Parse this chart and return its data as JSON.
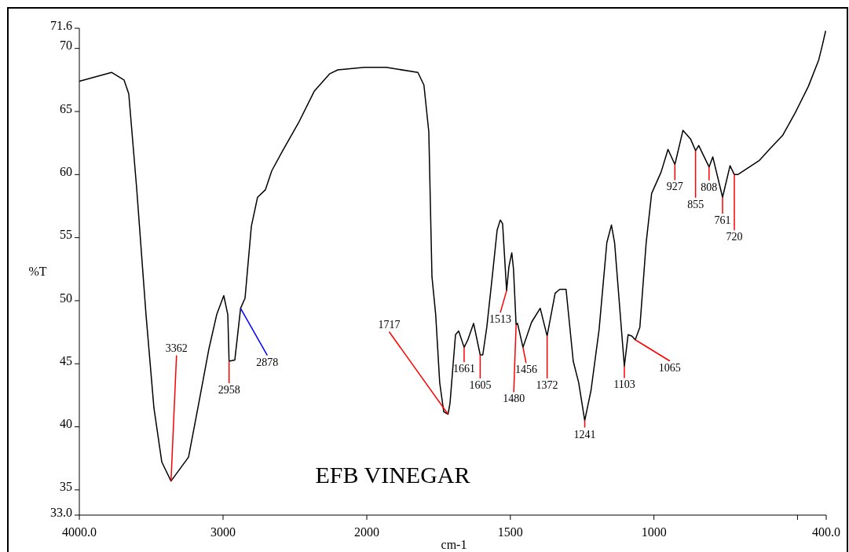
{
  "chart_data": [
    {
      "type": "line",
      "ylabel": "%T",
      "xlim": [
        4000,
        2000
      ],
      "ylim": [
        33,
        71.6
      ],
      "xticks": [
        {
          "value": 4000,
          "label": "4000.0"
        },
        3000
      ],
      "yticks": [
        {
          "value": 33,
          "label": "33.0"
        },
        35,
        40,
        45,
        50,
        55,
        60,
        65,
        70,
        71.6
      ],
      "series": [
        {
          "color": "#000000",
          "x": [
            4000,
            3776,
            3689,
            3656,
            3601,
            3536,
            3481,
            3426,
            3362,
            3240,
            3175,
            3098,
            3044,
            2995,
            2967,
            2958,
            2918,
            2878,
            2847,
            2803,
            2760,
            2705,
            2661,
            2585,
            2475,
            2366,
            2257,
            2202,
            2016,
            2000
          ],
          "values": [
            67.4,
            68.1,
            67.5,
            66.4,
            58.9,
            48.9,
            41.5,
            37.2,
            35.7,
            37.6,
            41.5,
            46.2,
            48.9,
            50.4,
            48.9,
            45.2,
            45.3,
            49.4,
            50.2,
            55.9,
            58.2,
            58.8,
            60.3,
            61.9,
            64.1,
            66.6,
            68.0,
            68.3,
            68.5,
            68.5
          ]
        }
      ],
      "annotations": [
        {
          "text": "3362",
          "x": 3362,
          "y": 35.7
        },
        {
          "text": "2958",
          "x": 2958,
          "y": 45.2
        },
        {
          "text": "2878",
          "x": 2878,
          "y": 49.4
        }
      ]
    },
    {
      "type": "line",
      "title": "EFB VINEGAR",
      "xlabel": "cm-1",
      "xlim": [
        2000,
        400
      ],
      "ylim": [
        33,
        71.6
      ],
      "tick_labels": "x",
      "xticks": [
        2000,
        1500,
        1000,
        {
          "value": 500,
          "label": null
        },
        {
          "value": 400,
          "label": "400.0"
        }
      ],
      "series": [
        {
          "color": "#000000",
          "x": [
            2000,
            1932,
            1822,
            1801,
            1784,
            1773,
            1760,
            1746,
            1732,
            1717,
            1710,
            1691,
            1680,
            1661,
            1648,
            1628,
            1605,
            1596,
            1582,
            1563,
            1546,
            1535,
            1527,
            1513,
            1505,
            1495,
            1489,
            1480,
            1475,
            1456,
            1426,
            1396,
            1372,
            1344,
            1328,
            1306,
            1281,
            1262,
            1241,
            1219,
            1191,
            1164,
            1148,
            1137,
            1103,
            1090,
            1077,
            1065,
            1049,
            1027,
            1008,
            975,
            951,
            927,
            899,
            872,
            855,
            844,
            808,
            795,
            761,
            735,
            720,
            708,
            634,
            598,
            552,
            508,
            462,
            426,
            413,
            402
          ],
          "values": [
            68.5,
            68.5,
            68.1,
            67.1,
            63.4,
            51.9,
            48.9,
            43.5,
            41.2,
            41.0,
            41.9,
            47.3,
            47.6,
            46.3,
            46.9,
            48.2,
            45.7,
            45.7,
            47.9,
            51.9,
            55.6,
            56.4,
            56.1,
            50.8,
            52.7,
            53.8,
            52.5,
            48.1,
            48.2,
            46.3,
            48.3,
            49.4,
            47.2,
            50.6,
            50.9,
            50.9,
            45.2,
            43.5,
            40.5,
            42.9,
            47.7,
            54.6,
            56.0,
            54.6,
            44.8,
            47.3,
            47.2,
            46.9,
            47.9,
            54.6,
            58.5,
            60.2,
            62.0,
            60.8,
            63.5,
            62.8,
            61.9,
            62.3,
            60.6,
            61.4,
            58.2,
            60.7,
            60.0,
            60.0,
            61.1,
            62.0,
            63.1,
            64.9,
            67.0,
            69.1,
            70.3,
            71.4
          ]
        }
      ],
      "annotations": [
        {
          "text": "1717",
          "x": 1717,
          "y": 41.0
        },
        {
          "text": "1661",
          "x": 1661,
          "y": 46.3
        },
        {
          "text": "1605",
          "x": 1605,
          "y": 45.7
        },
        {
          "text": "1513",
          "x": 1513,
          "y": 50.8
        },
        {
          "text": "1480",
          "x": 1480,
          "y": 48.1
        },
        {
          "text": "1456",
          "x": 1456,
          "y": 46.3
        },
        {
          "text": "1372",
          "x": 1372,
          "y": 47.2
        },
        {
          "text": "1241",
          "x": 1241,
          "y": 40.5
        },
        {
          "text": "1103",
          "x": 1103,
          "y": 44.8
        },
        {
          "text": "1065",
          "x": 1065,
          "y": 46.9
        },
        {
          "text": "927",
          "x": 927,
          "y": 60.8
        },
        {
          "text": "855",
          "x": 855,
          "y": 61.9
        },
        {
          "text": "808",
          "x": 808,
          "y": 60.6
        },
        {
          "text": "761",
          "x": 761,
          "y": 58.2
        },
        {
          "text": "720",
          "x": 720,
          "y": 60.0
        }
      ]
    }
  ]
}
